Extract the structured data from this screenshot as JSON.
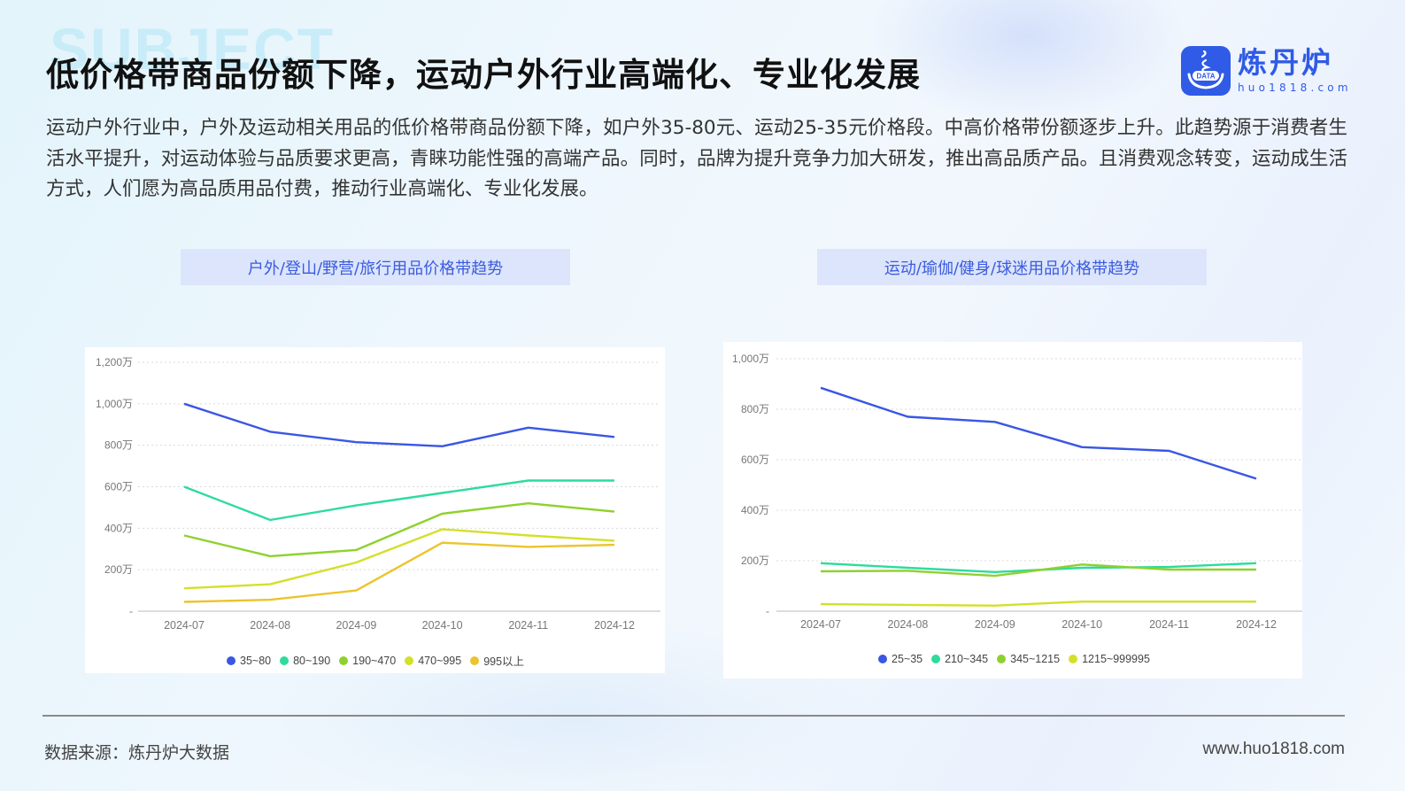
{
  "header": {
    "watermark": "SUBJECT",
    "title": "低价格带商品份额下降，运动户外行业高端化、专业化发展",
    "logo": {
      "badge_text": "DATA",
      "name_cn": "炼丹炉",
      "name_en": "huo1818.com",
      "brand_color": "#2f5be6"
    }
  },
  "intro": "运动户外行业中，户外及运动相关用品的低价格带商品份额下降，如户外35-80元、运动25-35元价格段。中高价格带份额逐步上升。此趋势源于消费者生活水平提升，对运动体验与品质要求更高，青睐功能性强的高端产品。同时，品牌为提升竞争力加大研发，推出高品质产品。且消费观念转变，运动成生活方式，人们愿为高品质用品付费，推动行业高端化、专业化发展。",
  "charts": [
    {
      "title": "户外/登山/野营/旅行用品价格带趋势",
      "legend": [
        {
          "label": "35~80",
          "color": "#3a56e4"
        },
        {
          "label": "80~190",
          "color": "#2ddc9c"
        },
        {
          "label": "190~470",
          "color": "#8ed12e"
        },
        {
          "label": "470~995",
          "color": "#d3e02a"
        },
        {
          "label": "995以上",
          "color": "#ecc42c"
        }
      ]
    },
    {
      "title": "运动/瑜伽/健身/球迷用品价格带趋势",
      "legend": [
        {
          "label": "25~35",
          "color": "#3a56e4"
        },
        {
          "label": "210~345",
          "color": "#2ddc9c"
        },
        {
          "label": "345~1215",
          "color": "#8ed12e"
        },
        {
          "label": "1215~999995",
          "color": "#d3e02a"
        }
      ]
    }
  ],
  "footer": {
    "source": "数据来源：炼丹炉大数据",
    "url": "www.huo1818.com"
  },
  "chart_data": [
    {
      "type": "line",
      "title": "户外/登山/野营/旅行用品价格带趋势",
      "xlabel": "",
      "ylabel": "",
      "unit": "万",
      "categories": [
        "2024-07",
        "2024-08",
        "2024-09",
        "2024-10",
        "2024-11",
        "2024-12"
      ],
      "yticks": [
        "-",
        "200万",
        "400万",
        "600万",
        "800万",
        "1,000万",
        "1,200万"
      ],
      "ylim": [
        0,
        1200
      ],
      "grid": true,
      "legend_position": "bottom",
      "series": [
        {
          "name": "35~80",
          "color": "#3a56e4",
          "values": [
            1000,
            865,
            815,
            795,
            885,
            840
          ]
        },
        {
          "name": "80~190",
          "color": "#2ddc9c",
          "values": [
            600,
            440,
            510,
            570,
            630,
            630
          ]
        },
        {
          "name": "190~470",
          "color": "#8ed12e",
          "values": [
            365,
            265,
            295,
            470,
            520,
            480
          ]
        },
        {
          "name": "470~995",
          "color": "#d3e02a",
          "values": [
            110,
            130,
            235,
            395,
            365,
            340
          ]
        },
        {
          "name": "995以上",
          "color": "#ecc42c",
          "values": [
            45,
            55,
            100,
            330,
            310,
            320
          ]
        }
      ]
    },
    {
      "type": "line",
      "title": "运动/瑜伽/健身/球迷用品价格带趋势",
      "xlabel": "",
      "ylabel": "",
      "unit": "万",
      "categories": [
        "2024-07",
        "2024-08",
        "2024-09",
        "2024-10",
        "2024-11",
        "2024-12"
      ],
      "yticks": [
        "-",
        "200万",
        "400万",
        "600万",
        "800万",
        "1,000万"
      ],
      "ylim": [
        0,
        1000
      ],
      "grid": true,
      "legend_position": "bottom",
      "series": [
        {
          "name": "25~35",
          "color": "#3a56e4",
          "values": [
            885,
            770,
            750,
            650,
            635,
            525
          ]
        },
        {
          "name": "210~345",
          "color": "#2ddc9c",
          "values": [
            190,
            172,
            155,
            172,
            175,
            190
          ]
        },
        {
          "name": "345~1215",
          "color": "#8ed12e",
          "values": [
            158,
            160,
            140,
            185,
            165,
            165
          ]
        },
        {
          "name": "1215~999995",
          "color": "#d3e02a",
          "values": [
            28,
            25,
            22,
            38,
            38,
            38
          ]
        }
      ]
    }
  ]
}
